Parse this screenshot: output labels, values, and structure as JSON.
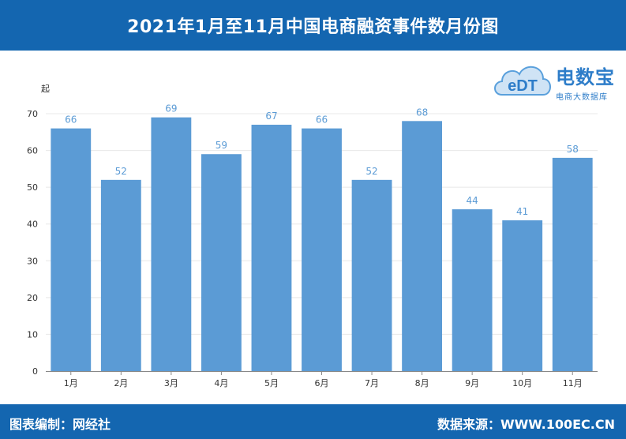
{
  "header": {
    "title": "2021年1月至11月中国电商融资事件数月份图"
  },
  "footer": {
    "left": "图表编制：网经社",
    "right": "数据来源：WWW.100EC.CN"
  },
  "logo": {
    "mark_text": "eDT",
    "name": "电数宝",
    "subtitle": "电商大数据库"
  },
  "chart_data": {
    "type": "bar",
    "title": "2021年1月至11月中国电商融资事件数月份图",
    "ylabel": "起",
    "xlabel": "",
    "categories": [
      "1月",
      "2月",
      "3月",
      "4月",
      "5月",
      "6月",
      "7月",
      "8月",
      "9月",
      "10月",
      "11月"
    ],
    "values": [
      66,
      52,
      69,
      59,
      67,
      66,
      52,
      68,
      44,
      41,
      58
    ],
    "ylim": [
      0,
      70
    ],
    "yticks": [
      0,
      10,
      20,
      30,
      40,
      50,
      60,
      70
    ],
    "grid": true,
    "data_labels": true,
    "bar_color": "#5b9bd5",
    "label_color": "#5b9bd5"
  }
}
